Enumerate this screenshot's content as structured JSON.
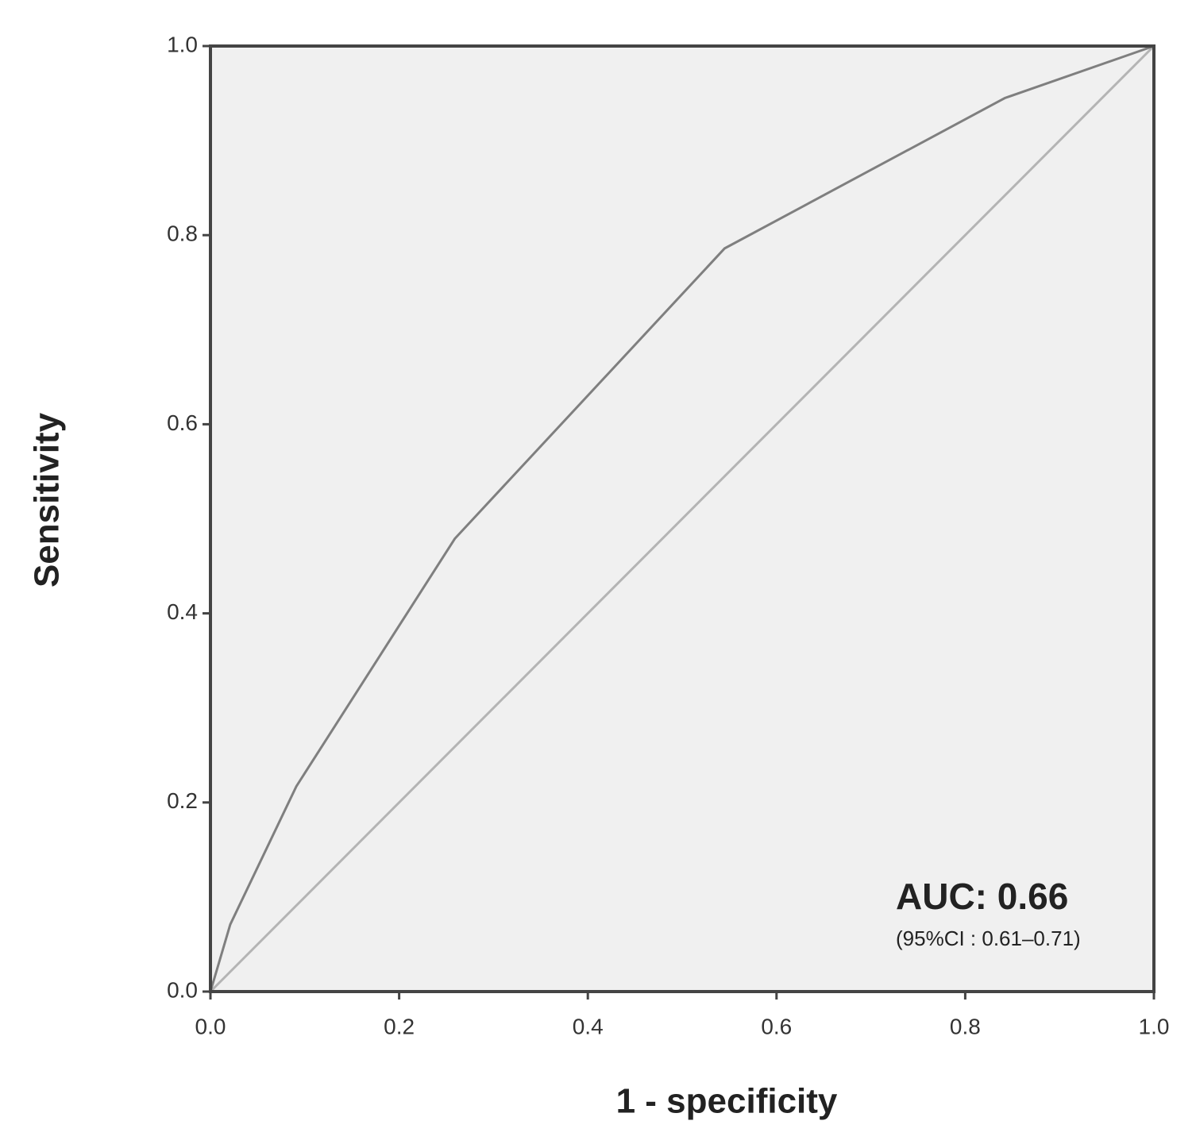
{
  "chart_data": {
    "type": "line",
    "x_label": "1 - specificity",
    "y_label": "Sensitivity",
    "xlim": [
      0,
      1
    ],
    "ylim": [
      0,
      1
    ],
    "xticks": [
      {
        "value": 0,
        "label": "0.0"
      },
      0.2,
      0.4,
      0.6,
      0.8,
      {
        "value": 1,
        "label": "1.0"
      }
    ],
    "yticks": [
      {
        "value": 0,
        "label": "0.0"
      },
      0.2,
      0.4,
      0.6,
      0.8,
      {
        "value": 1,
        "label": "1.0"
      }
    ],
    "series": [
      {
        "color": "#7f7f7f",
        "x": [
          0,
          0.021,
          0.091,
          0.259,
          0.545,
          0.842,
          1
        ],
        "values": [
          0,
          0.071,
          0.217,
          0.479,
          0.786,
          0.945,
          1
        ]
      },
      {
        "color": "#b4b4b4",
        "x": [
          0,
          1
        ],
        "values": [
          0,
          1
        ]
      }
    ],
    "annotations": [
      "AUC: 0.66",
      "(95%CI : 0.61–0.71)"
    ]
  }
}
